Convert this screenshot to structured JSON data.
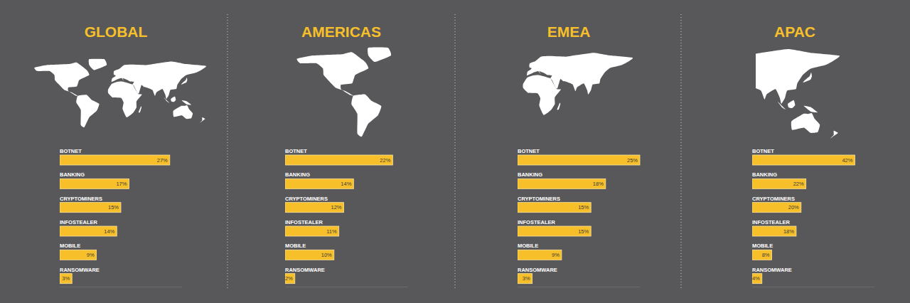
{
  "chart_data": [
    {
      "type": "bar",
      "title": "GLOBAL",
      "orientation": "horizontal",
      "categories": [
        "BOTNET",
        "BANKING",
        "CRYPTOMINERS",
        "INFOSTEALER",
        "MOBILE",
        "RANSOMWARE"
      ],
      "values": [
        27,
        17,
        15,
        14,
        9,
        3
      ],
      "value_labels": [
        "27%",
        "17%",
        "15%",
        "14%",
        "9%",
        "3%"
      ],
      "color": "#f7c02a",
      "xlim": [
        0,
        30
      ],
      "xticks": [],
      "data_labels": true,
      "tick_labels": "y"
    },
    {
      "type": "bar",
      "title": "AMERICAS",
      "orientation": "horizontal",
      "categories": [
        "BOTNET",
        "BANKING",
        "CRYPTOMINERS",
        "INFOSTEALER",
        "MOBILE",
        "RANSOMWARE"
      ],
      "values": [
        22,
        14,
        12,
        11,
        10,
        2
      ],
      "value_labels": [
        "22%",
        "14%",
        "12%",
        "11%",
        "10%",
        "2%"
      ],
      "color": "#f7c02a",
      "xlim": [
        0,
        25
      ],
      "xticks": [],
      "data_labels": true,
      "tick_labels": "y"
    },
    {
      "type": "bar",
      "title": "EMEA",
      "orientation": "horizontal",
      "categories": [
        "BOTNET",
        "BANKING",
        "CRYPTOMINERS",
        "INFOSTEALER",
        "MOBILE",
        "RANSOMWARE"
      ],
      "values": [
        25,
        18,
        15,
        15,
        9,
        3
      ],
      "value_labels": [
        "25%",
        "18%",
        "15%",
        "15%",
        "9%",
        "3%"
      ],
      "color": "#f7c02a",
      "xlim": [
        0,
        25
      ],
      "xticks": [],
      "data_labels": true,
      "tick_labels": "y"
    },
    {
      "type": "bar",
      "title": "APAC",
      "orientation": "horizontal",
      "categories": [
        "BOTNET",
        "BANKING",
        "CRYPTOMINERS",
        "INFOSTEALER",
        "MOBILE",
        "RANSOMWARE"
      ],
      "values": [
        42,
        22,
        20,
        18,
        8,
        4
      ],
      "value_labels": [
        "42%",
        "22%",
        "20%",
        "18%",
        "8%",
        "4%"
      ],
      "color": "#f7c02a",
      "xlim": [
        0,
        50
      ],
      "xticks": [],
      "data_labels": true,
      "tick_labels": "y"
    }
  ]
}
